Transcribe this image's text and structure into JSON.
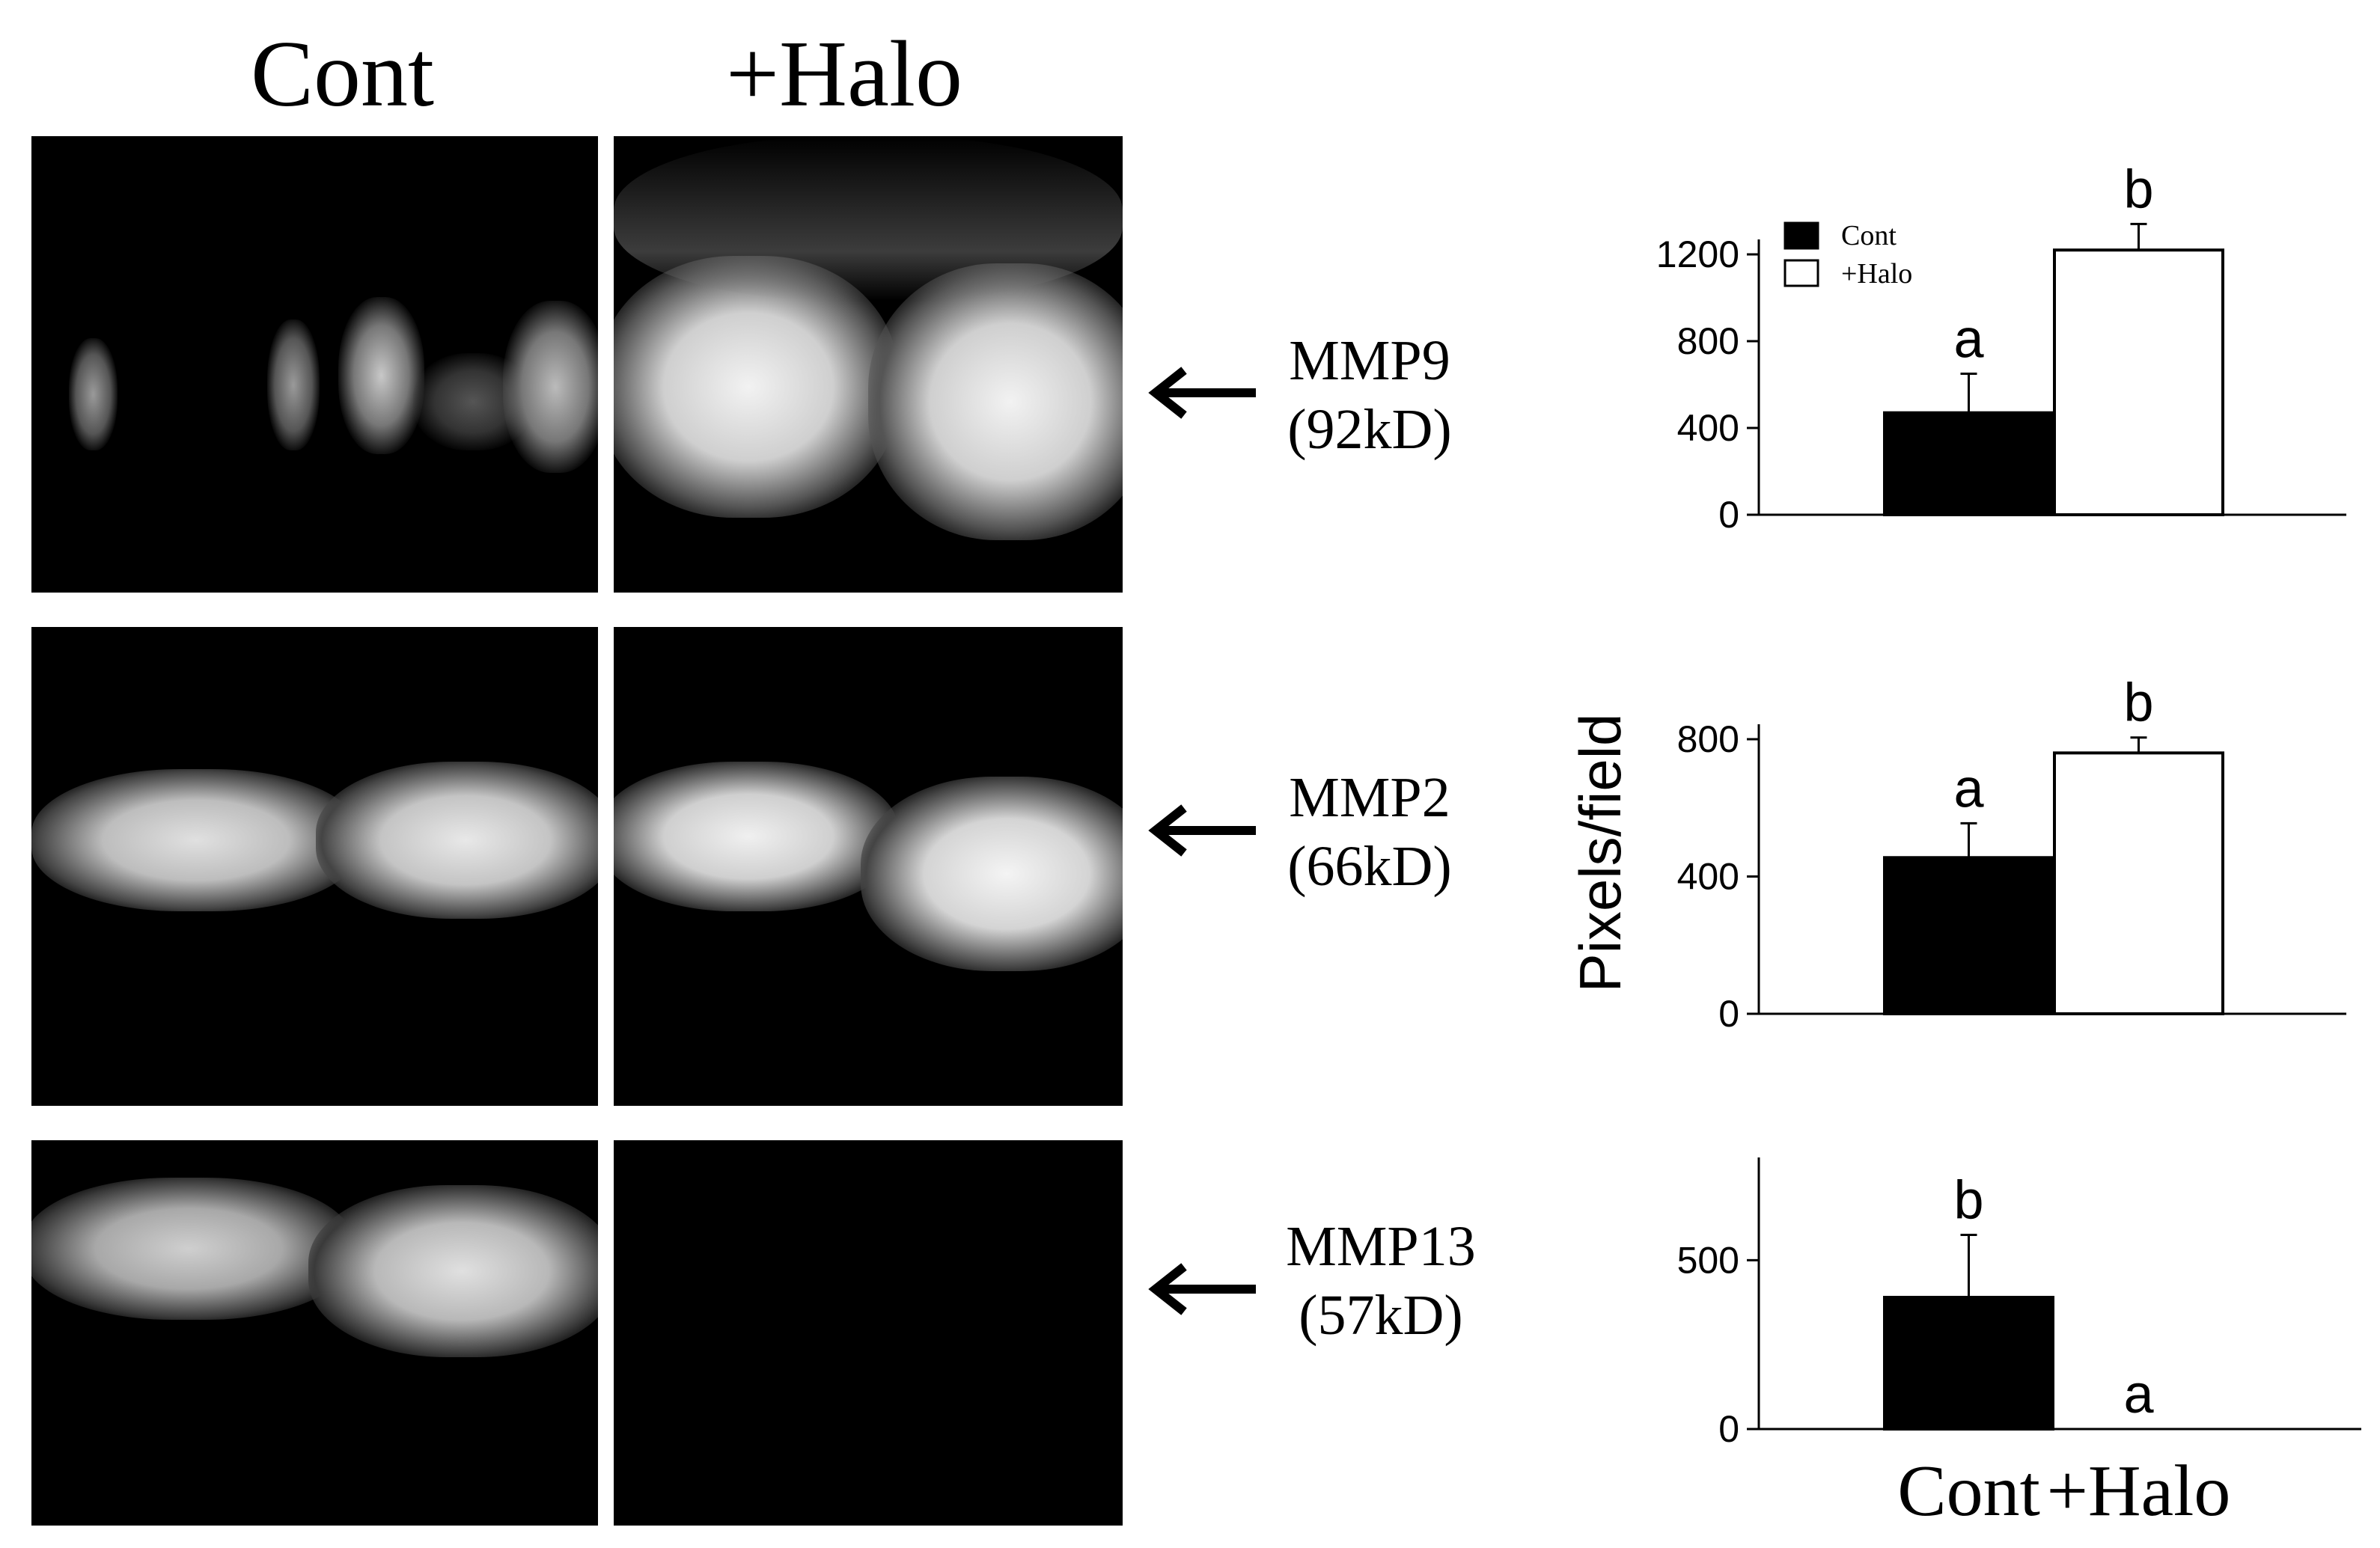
{
  "header": {
    "col_cont": "Cont",
    "col_halo": "+Halo"
  },
  "blots": [
    {
      "protein": "MMP9",
      "size": "(92kD)"
    },
    {
      "protein": "MMP2",
      "size": "(66kD)"
    },
    {
      "protein": "MMP13",
      "size": "(57kD)"
    }
  ],
  "colors": {
    "cont_bar": "#000000",
    "halo_bar": "#ffffff",
    "gel_bg": "#000000",
    "band": "#e8e8e8"
  },
  "icons": {
    "arrow": "left-arrow-icon"
  },
  "shared_ylabel": "Pixels/field",
  "x_labels": [
    "Cont",
    "+Halo"
  ],
  "chart_data": [
    {
      "type": "bar",
      "protein": "MMP9",
      "categories": [
        "Cont",
        "+Halo"
      ],
      "values": [
        470,
        1220
      ],
      "errors": [
        180,
        120
      ],
      "letters": [
        "a",
        "b"
      ],
      "yticks": [
        0,
        400,
        800,
        1200
      ],
      "ylim": [
        0,
        1200
      ],
      "legend": {
        "entries": [
          "Cont",
          "+Halo"
        ],
        "placement": "top-left"
      }
    },
    {
      "type": "bar",
      "protein": "MMP2",
      "categories": [
        "Cont",
        "+Halo"
      ],
      "values": [
        455,
        760
      ],
      "errors": [
        100,
        45
      ],
      "letters": [
        "a",
        "b"
      ],
      "yticks": [
        0,
        400,
        800
      ],
      "ylim": [
        0,
        800
      ]
    },
    {
      "type": "bar",
      "protein": "MMP13",
      "categories": [
        "Cont",
        "+Halo"
      ],
      "values": [
        390,
        0
      ],
      "errors": [
        185,
        0
      ],
      "letters": [
        "b",
        "a"
      ],
      "yticks": [
        0,
        500
      ],
      "ylim": [
        0,
        500
      ]
    }
  ]
}
